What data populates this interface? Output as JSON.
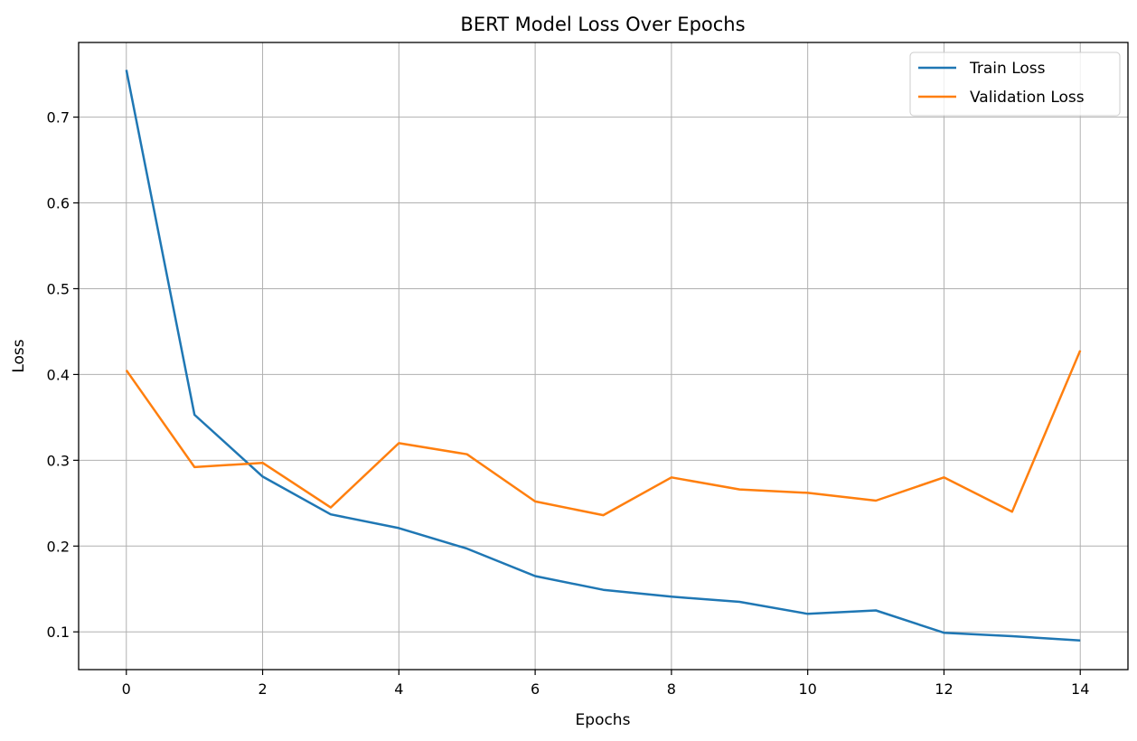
{
  "chart_data": {
    "type": "line",
    "title": "BERT Model Loss Over Epochs",
    "xlabel": "Epochs",
    "ylabel": "Loss",
    "x": [
      0,
      1,
      2,
      3,
      4,
      5,
      6,
      7,
      8,
      9,
      10,
      11,
      12,
      13,
      14
    ],
    "xlim": [
      -0.7,
      14.7
    ],
    "ylim": [
      0.056,
      0.787
    ],
    "xticks": [
      0,
      2,
      4,
      6,
      8,
      10,
      12,
      14
    ],
    "yticks": [
      0.1,
      0.2,
      0.3,
      0.4,
      0.5,
      0.6,
      0.7
    ],
    "ytick_labels": [
      "0.1",
      "0.2",
      "0.3",
      "0.4",
      "0.5",
      "0.6",
      "0.7"
    ],
    "grid": true,
    "legend_position": "top-right",
    "series": [
      {
        "name": "Train Loss",
        "color": "#1f77b4",
        "values": [
          0.755,
          0.353,
          0.281,
          0.237,
          0.221,
          0.197,
          0.165,
          0.149,
          0.141,
          0.135,
          0.121,
          0.125,
          0.099,
          0.095,
          0.09
        ]
      },
      {
        "name": "Validation Loss",
        "color": "#ff7f0e",
        "values": [
          0.405,
          0.292,
          0.297,
          0.245,
          0.32,
          0.307,
          0.252,
          0.236,
          0.28,
          0.266,
          0.262,
          0.253,
          0.28,
          0.24,
          0.428
        ]
      }
    ]
  }
}
